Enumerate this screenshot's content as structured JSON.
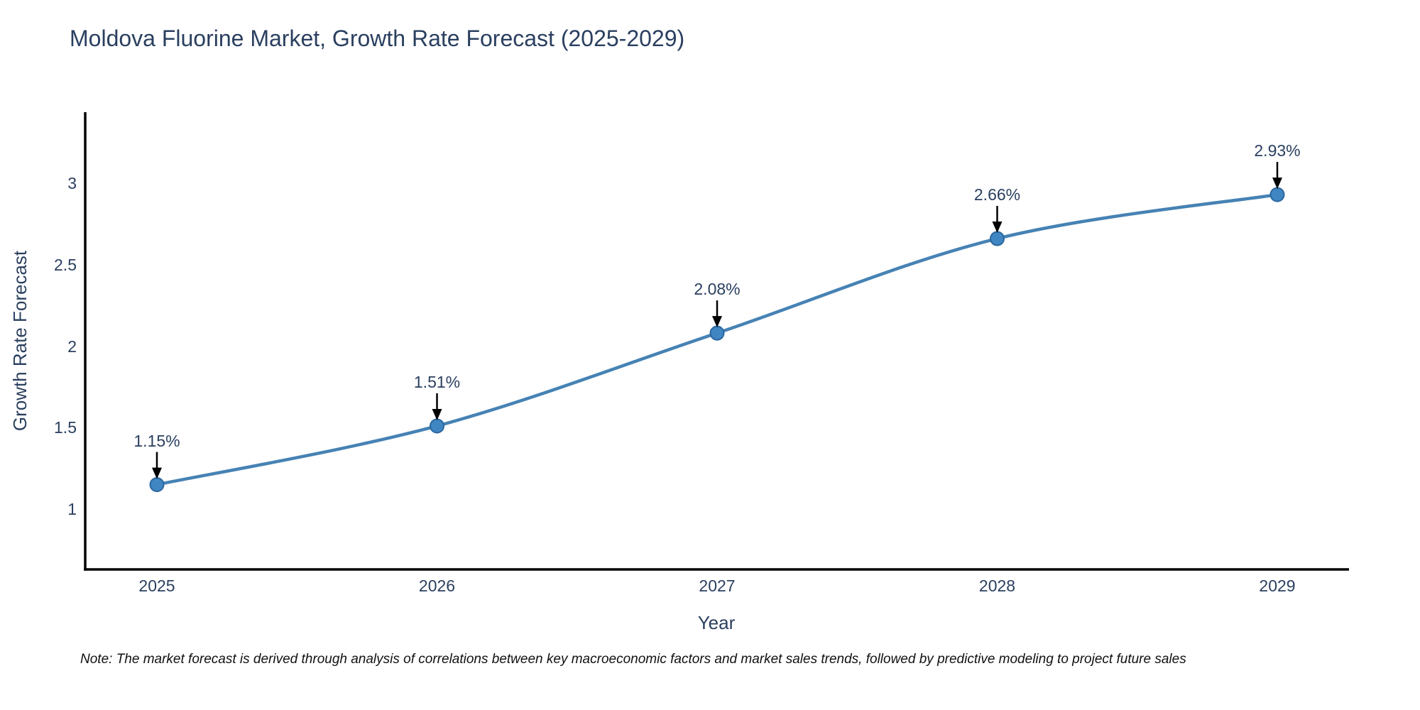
{
  "page": {
    "title": "Moldova Fluorine Market, Growth Rate Forecast (2025-2029)",
    "note": "Note: The market forecast is derived through analysis of correlations between key macroeconomic factors and market sales trends, followed by predictive modeling to project future sales"
  },
  "chart_data": {
    "type": "line",
    "title": "Moldova Fluorine Market, Growth Rate Forecast (2025-2029)",
    "xlabel": "Year",
    "ylabel": "Growth Rate Forecast",
    "x": [
      2025,
      2026,
      2027,
      2028,
      2029
    ],
    "series": [
      {
        "name": "Growth Rate Forecast",
        "values": [
          1.15,
          1.51,
          2.08,
          2.66,
          2.93
        ],
        "point_labels": [
          "1.15%",
          "1.51%",
          "2.08%",
          "2.66%",
          "2.93%"
        ]
      }
    ],
    "yticks": [
      1,
      1.5,
      2,
      2.5,
      3
    ],
    "ylim": [
      0.63,
      3.43
    ],
    "xlim": [
      2024.74,
      2029.26
    ],
    "line_shape": "spline",
    "markers": true,
    "grid": false,
    "legend_position": "none",
    "annotations": "black arrows pointing down to each data point with percentage labels",
    "colors": {
      "line": "#4682b4",
      "marker_fill": "#4086c2",
      "marker_stroke": "#2b679f",
      "axis": "#000000",
      "text": "#2a3f5f",
      "note_text": "#111111",
      "arrow": "#000000",
      "background": "#ffffff"
    }
  }
}
